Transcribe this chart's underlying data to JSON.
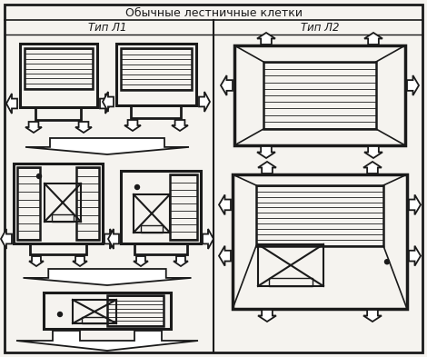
{
  "title": "Обычные лестничные клетки",
  "subtitle_left": "Тип Л1",
  "subtitle_right": "Тип Л2",
  "bg_color": "#f5f3ef",
  "line_color": "#1a1a1a",
  "fig_width": 4.7,
  "fig_height": 3.93,
  "dpi": 100
}
